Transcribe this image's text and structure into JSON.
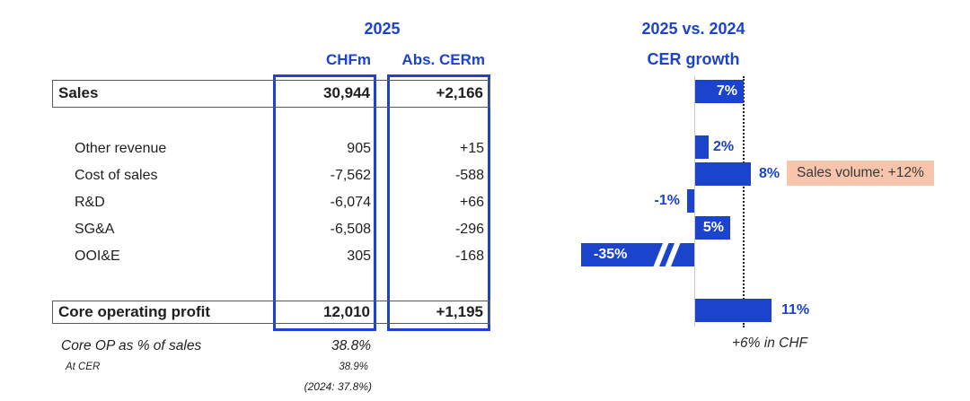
{
  "colors": {
    "accent_blue": "#1b43cc",
    "annotation_bg": "#f6c5ab",
    "text": "#1f1f1f"
  },
  "table": {
    "year_header": "2025",
    "col_headers": [
      "CHFm",
      "Abs. CERm"
    ],
    "rows": [
      {
        "label": "Sales",
        "chfm": "30,944",
        "cerm": "+2,166"
      },
      {
        "label": "Other revenue",
        "chfm": "905",
        "cerm": "+15"
      },
      {
        "label": "Cost of sales",
        "chfm": "-7,562",
        "cerm": "-588"
      },
      {
        "label": "R&D",
        "chfm": "-6,074",
        "cerm": "+66"
      },
      {
        "label": "SG&A",
        "chfm": "-6,508",
        "cerm": "-296"
      },
      {
        "label": "OOI&E",
        "chfm": "305",
        "cerm": "-168"
      },
      {
        "label": "Core operating profit",
        "chfm": "12,010",
        "cerm": "+1,195"
      }
    ],
    "footnotes": {
      "core_op_pct_label": "Core OP as % of sales",
      "core_op_pct_value": "38.8%",
      "at_cer_label": "At CER",
      "at_cer_value": "38.9%",
      "prior_year_note": "(2024: 37.8%)"
    }
  },
  "chart": {
    "title_line1": "2025 vs. 2024",
    "title_line2": "CER growth",
    "bar_labels": [
      "7%",
      "2%",
      "8%",
      "-1%",
      "5%",
      "-35%",
      "11%"
    ],
    "annotation": "Sales volume: +12%",
    "footnote": "+6% in CHF"
  },
  "chart_data": [
    {
      "type": "table",
      "title": "2025",
      "columns": [
        "CHFm",
        "Abs. CERm"
      ],
      "rows": [
        [
          "Sales",
          "30,944",
          "+2,166"
        ],
        [
          "Other revenue",
          "905",
          "+15"
        ],
        [
          "Cost of sales",
          "-7,562",
          "-588"
        ],
        [
          "R&D",
          "-6,074",
          "+66"
        ],
        [
          "SG&A",
          "-6,508",
          "-296"
        ],
        [
          "OOI&E",
          "305",
          "-168"
        ],
        [
          "Core operating profit",
          "12,010",
          "+1,195"
        ]
      ],
      "footnotes": [
        [
          "Core OP as % of sales",
          "38.8%"
        ],
        [
          "At CER",
          "38.9%"
        ],
        [
          "",
          "(2024: 37.8%)"
        ]
      ]
    },
    {
      "type": "bar",
      "orientation": "horizontal",
      "title": "2025 vs. 2024 CER growth",
      "categories": [
        "Sales",
        "Other revenue",
        "Cost of sales",
        "R&D",
        "SG&A",
        "OOI&E",
        "Core operating profit"
      ],
      "values": [
        7,
        2,
        8,
        -1,
        5,
        -35,
        11
      ],
      "unit": "percent CER growth",
      "reference_line": {
        "style": "dotted",
        "at_value": 7
      },
      "annotations": [
        {
          "target": "Cost of sales",
          "text": "Sales volume: +12%"
        },
        {
          "target": "Sales",
          "text": "+6% in CHF"
        }
      ],
      "notes": "OOI&E bar (-35%) drawn truncated with white axis-break slashes; bar labels white inside bar for 7%, 5%, -35%, blue outside bar for 2%, 8%, -1%, 11%"
    }
  ]
}
